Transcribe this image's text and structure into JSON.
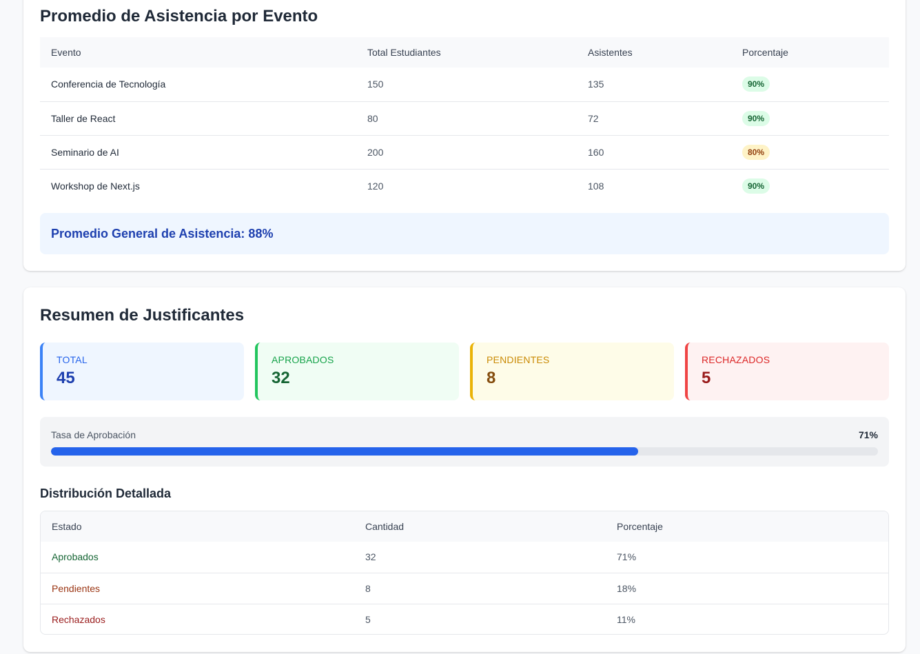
{
  "attendance": {
    "title": "Promedio de Asistencia por Evento",
    "headers": [
      "Evento",
      "Total Estudiantes",
      "Asistentes",
      "Porcentaje"
    ],
    "rows": [
      {
        "event": "Conferencia de Tecnología",
        "total": "150",
        "attendees": "135",
        "percent": "90%",
        "status_color": "green"
      },
      {
        "event": "Taller de React",
        "total": "80",
        "attendees": "72",
        "percent": "90%",
        "status_color": "green"
      },
      {
        "event": "Seminario de AI",
        "total": "200",
        "attendees": "160",
        "percent": "80%",
        "status_color": "yellow"
      },
      {
        "event": "Workshop de Next.js",
        "total": "120",
        "attendees": "108",
        "percent": "90%",
        "status_color": "green"
      }
    ],
    "average_text": "Promedio General de Asistencia: 88%"
  },
  "justifications": {
    "title": "Resumen de Justificantes",
    "stats": {
      "total": {
        "label": "TOTAL",
        "value": "45",
        "color": "#3b82f6"
      },
      "approved": {
        "label": "APROBADOS",
        "value": "32",
        "color": "#22c55e"
      },
      "pending": {
        "label": "PENDIENTES",
        "value": "8",
        "color": "#eab308"
      },
      "rejected": {
        "label": "RECHAZADOS",
        "value": "5",
        "color": "#ef4444"
      }
    },
    "approval_rate": {
      "label": "Tasa de Aprobación",
      "value_text": "71%",
      "fraction": 0.71
    },
    "distribution": {
      "title": "Distribución Detallada",
      "headers": [
        "Estado",
        "Cantidad",
        "Porcentaje"
      ],
      "rows": [
        {
          "state": "Aprobados",
          "count": "32",
          "percent": "71%"
        },
        {
          "state": "Pendientes",
          "count": "8",
          "percent": "18%"
        },
        {
          "state": "Rechazados",
          "count": "5",
          "percent": "11%"
        }
      ]
    }
  }
}
